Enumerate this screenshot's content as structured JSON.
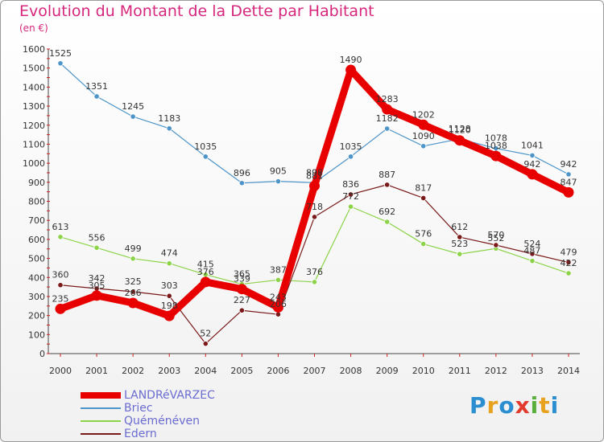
{
  "header": {
    "title": "Evolution du Montant de la Dette par Habitant",
    "subtitle": "(en €)"
  },
  "logo": {
    "text": "Proxiti",
    "colors": [
      "#2a8ed0",
      "#e8a21e",
      "#2a8ed0",
      "#e23b2d",
      "#5aaf3a",
      "#e8a21e",
      "#2a8ed0"
    ]
  },
  "chart_data": {
    "type": "line",
    "title": "Evolution du Montant de la Dette par Habitant",
    "subtitle": "(en €)",
    "x": [
      2000,
      2001,
      2002,
      2003,
      2004,
      2005,
      2006,
      2007,
      2008,
      2009,
      2010,
      2011,
      2012,
      2013,
      2014
    ],
    "ylim": [
      0,
      1600
    ],
    "yticks": [
      0,
      100,
      200,
      300,
      400,
      500,
      600,
      700,
      800,
      900,
      1000,
      1100,
      1200,
      1300,
      1400,
      1500,
      1600
    ],
    "grid": false,
    "legend": "bottom-left",
    "series": [
      {
        "name": "LANDRéVARZEC",
        "color": "#e80000",
        "values": [
          235,
          305,
          266,
          198,
          376,
          339,
          243,
          881,
          1490,
          1283,
          1202,
          1120,
          1038,
          942,
          847
        ]
      },
      {
        "name": "Briec",
        "color": "#4d94c8",
        "values": [
          1525,
          1351,
          1245,
          1183,
          1035,
          896,
          905,
          898,
          1035,
          1182,
          1090,
          1128,
          1078,
          1041,
          942
        ]
      },
      {
        "name": "Quéménéven",
        "color": "#8dd34a",
        "values": [
          613,
          556,
          499,
          474,
          415,
          365,
          387,
          376,
          772,
          692,
          576,
          523,
          552,
          487,
          422
        ]
      },
      {
        "name": "Edern",
        "color": "#7a1a1a",
        "values": [
          360,
          342,
          325,
          303,
          52,
          227,
          206,
          718,
          836,
          887,
          817,
          612,
          570,
          524,
          479
        ]
      }
    ]
  }
}
